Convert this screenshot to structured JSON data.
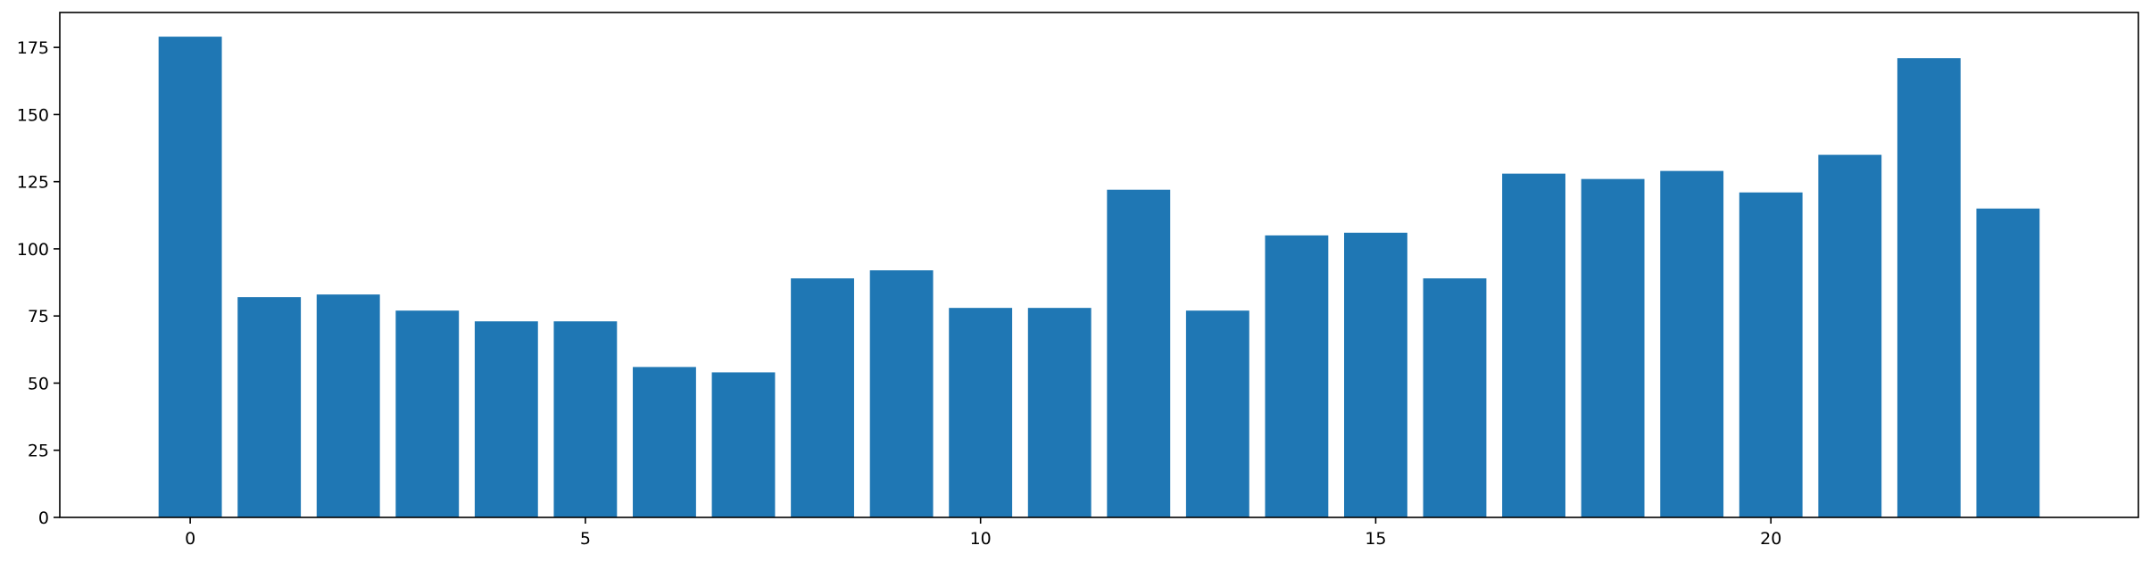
{
  "chart_data": {
    "type": "bar",
    "title": "",
    "xlabel": "",
    "ylabel": "",
    "color": "#1f77b4",
    "x": [
      0,
      1,
      2,
      3,
      4,
      5,
      6,
      7,
      8,
      9,
      10,
      11,
      12,
      13,
      14,
      15,
      16,
      17,
      18,
      19,
      20,
      21,
      22,
      23
    ],
    "values": [
      179,
      82,
      83,
      77,
      73,
      73,
      56,
      54,
      89,
      92,
      78,
      78,
      122,
      77,
      105,
      106,
      89,
      128,
      126,
      129,
      121,
      135,
      171,
      115
    ],
    "xlim": [
      -1.65,
      24.65
    ],
    "ylim": [
      0,
      188
    ],
    "xticks": [
      0,
      5,
      10,
      15,
      20
    ],
    "yticks": [
      0,
      25,
      50,
      75,
      100,
      125,
      150,
      175
    ],
    "grid": false
  }
}
